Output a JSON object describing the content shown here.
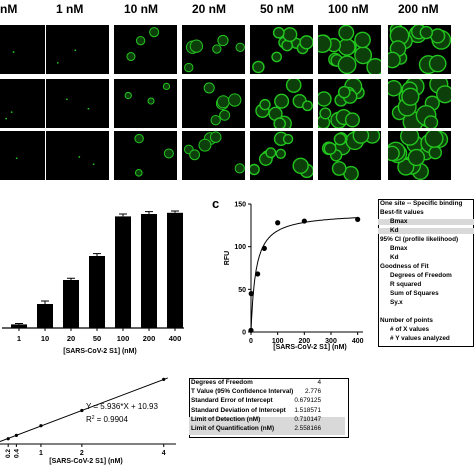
{
  "concentrations": [
    "nM",
    "1 nM",
    "10 nM",
    "20 nM",
    "50 nM",
    "100 nM",
    "200 nM"
  ],
  "panel_c_label": "c",
  "colors": {
    "cell_green": "#22c41e",
    "background": "#000000",
    "bar": "#000000"
  },
  "chart_data": [
    {
      "type": "bar",
      "categories": [
        "1",
        "10",
        "20",
        "50",
        "100",
        "200",
        "400"
      ],
      "values": [
        3,
        20,
        40,
        60,
        93,
        95,
        96
      ],
      "errors": [
        0.8,
        2.5,
        1.5,
        2,
        2,
        2,
        1.5
      ],
      "xlabel": "[SARS-CoV-2 S1] (nM)",
      "ylim": [
        0,
        100
      ]
    },
    {
      "type": "scatter",
      "x": [
        0,
        1,
        25,
        50,
        100,
        200,
        400
      ],
      "y": [
        2,
        45,
        68,
        98,
        128,
        130,
        132
      ],
      "fit": {
        "model": "one-site specific binding",
        "Bmax": 140,
        "Kd": 18
      },
      "ylabel": "RFU",
      "xlabel": "[SARS-CoV-2 S1] (nM)",
      "xticks": [
        "0",
        "100",
        "200",
        "300",
        "400"
      ],
      "yticks": [
        "0",
        "50",
        "100",
        "150"
      ],
      "xlim": [
        0,
        420
      ],
      "ylim": [
        0,
        150
      ]
    },
    {
      "type": "scatter",
      "x": [
        0.2,
        0.4,
        1,
        2,
        4
      ],
      "y": [
        12,
        13.3,
        17,
        22.8,
        34.7
      ],
      "xticks": [
        "0.2",
        "0.4",
        "1",
        "2",
        "4"
      ],
      "xlabel": "[SARS-CoV-2 S1] (nM)",
      "equation": "Y = 5.936*X + 10.93",
      "r2_label": "R",
      "r2_value": "= 0.9904"
    }
  ],
  "fit_table": [
    {
      "label": "One site -- Specific binding",
      "bold": true,
      "shade": false,
      "indent": 0
    },
    {
      "label": "Best-fit values",
      "bold": true,
      "shade": false,
      "indent": 0
    },
    {
      "label": "Bmax",
      "bold": true,
      "shade": true,
      "indent": 10
    },
    {
      "label": "Kd",
      "bold": true,
      "shade": true,
      "indent": 10
    },
    {
      "label": "95% CI (profile likelihood)",
      "bold": true,
      "shade": false,
      "indent": 0
    },
    {
      "label": "Bmax",
      "bold": true,
      "shade": false,
      "indent": 10
    },
    {
      "label": "Kd",
      "bold": true,
      "shade": false,
      "indent": 10
    },
    {
      "label": "Goodness of Fit",
      "bold": true,
      "shade": false,
      "indent": 0
    },
    {
      "label": "Degrees of Freedom",
      "bold": true,
      "shade": false,
      "indent": 10
    },
    {
      "label": "R squared",
      "bold": true,
      "shade": false,
      "indent": 10
    },
    {
      "label": "Sum of Squares",
      "bold": true,
      "shade": false,
      "indent": 10
    },
    {
      "label": "Sy.x",
      "bold": true,
      "shade": false,
      "indent": 10
    },
    {
      "label": "",
      "bold": false,
      "shade": false,
      "indent": 0
    },
    {
      "label": "Number of points",
      "bold": true,
      "shade": false,
      "indent": 0
    },
    {
      "label": "# of X values",
      "bold": true,
      "shade": false,
      "indent": 10
    },
    {
      "label": "# Y values analyzed",
      "bold": true,
      "shade": false,
      "indent": 10
    }
  ],
  "stats_table": [
    {
      "label": "Degrees of Freedom",
      "value": "4",
      "shade": false
    },
    {
      "label": "T Value (95% Confidence Interval)",
      "value": "2.776",
      "shade": false
    },
    {
      "label": "Standard Error of Intercept",
      "value": "0.679125",
      "shade": false
    },
    {
      "label": "Standard Deviation of Intercept",
      "value": "1.518571",
      "shade": false
    },
    {
      "label": "Limit of Detection (nM)",
      "value": "0.710147",
      "shade": true
    },
    {
      "label": "Limit of Quantification (nM)",
      "value": "2.558166",
      "shade": true
    }
  ]
}
